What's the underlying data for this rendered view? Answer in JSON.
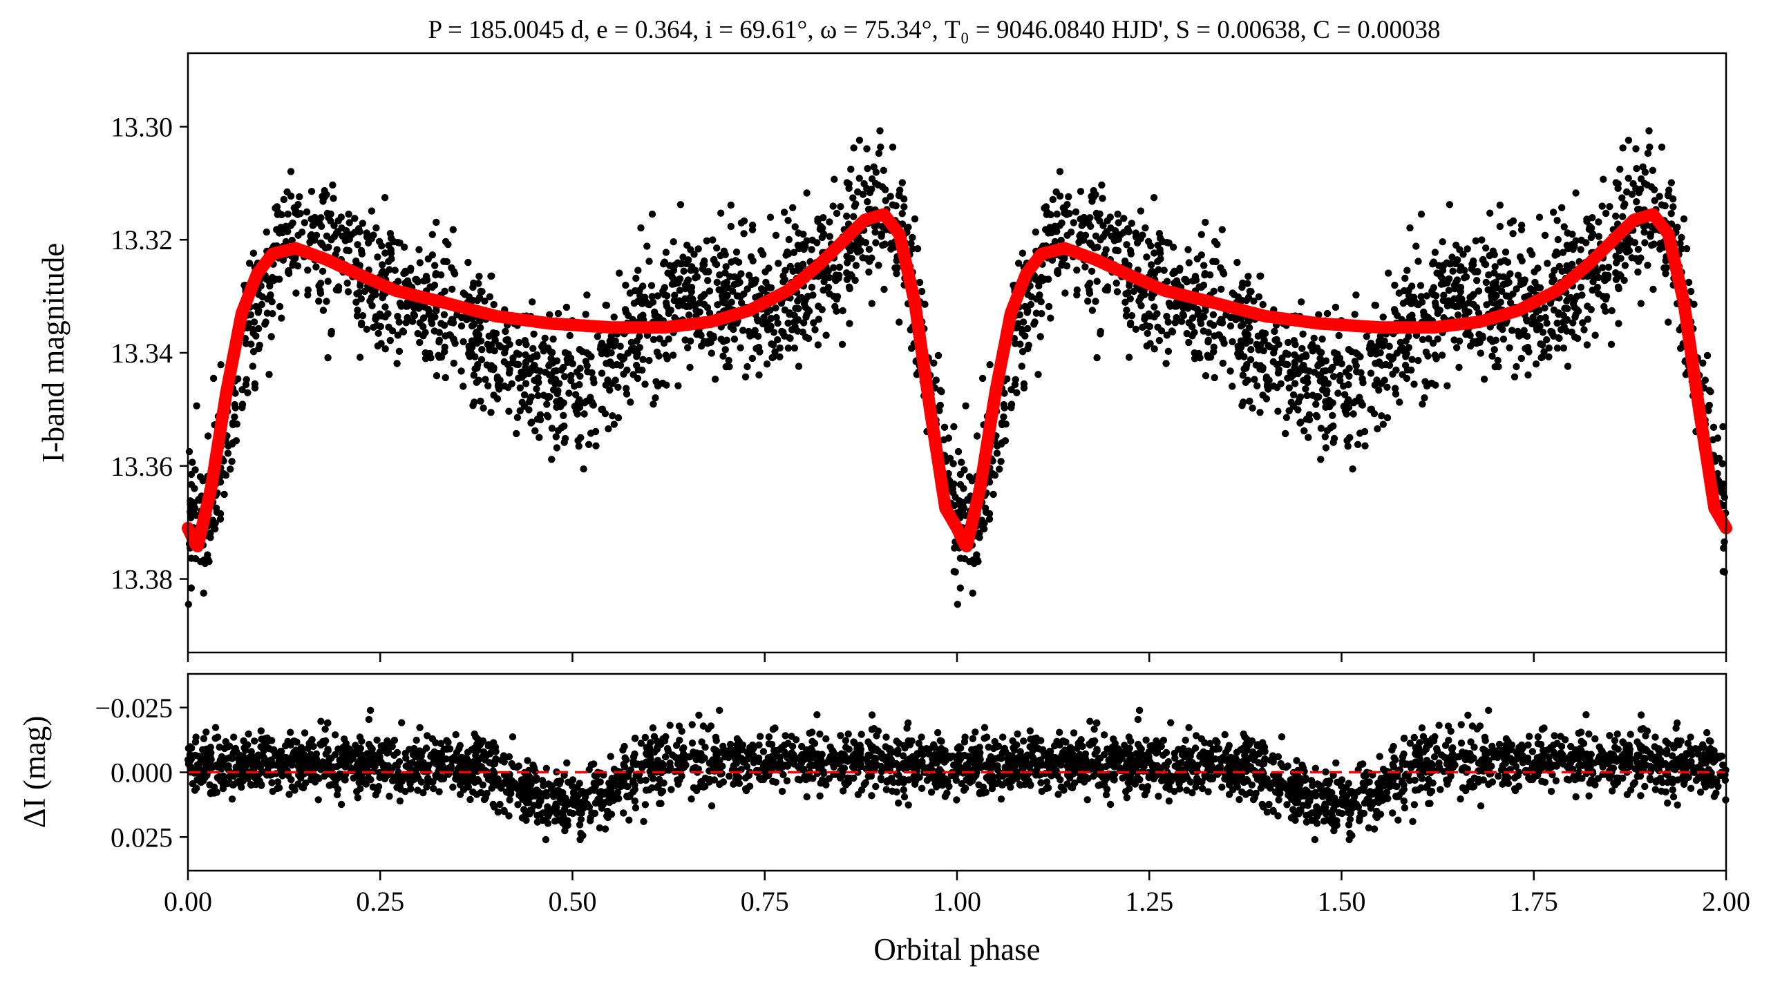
{
  "chart_data": [
    {
      "type": "scatter",
      "panel": "main",
      "title": "P = 185.0045 d, e = 0.364, i = 69.61°, ω = 75.34°, T₀ = 9046.0840 HJD', S = 0.00638, C = 0.00038",
      "xlabel": "",
      "ylabel": "I-band magnitude",
      "xlim": [
        0.0,
        2.0
      ],
      "ylim": [
        13.393,
        13.287
      ],
      "y_inverted": true,
      "xticks": [
        0.0,
        0.25,
        0.5,
        0.75,
        1.0,
        1.25,
        1.5,
        1.75,
        2.0
      ],
      "yticks": [
        13.3,
        13.32,
        13.34,
        13.36,
        13.38
      ],
      "ytick_labels": [
        "13.30",
        "13.32",
        "13.34",
        "13.36",
        "13.38"
      ],
      "grid": false,
      "legend": "none",
      "series": [
        {
          "kind": "points",
          "color": "#000000",
          "description_points": "phased photometry, ~2000 points per cycle, repeated for phase 1-2",
          "envelope": {
            "phase": [
              0.0,
              0.02,
              0.05,
              0.08,
              0.12,
              0.15,
              0.2,
              0.25,
              0.3,
              0.35,
              0.4,
              0.45,
              0.5,
              0.55,
              0.6,
              0.65,
              0.7,
              0.75,
              0.8,
              0.85,
              0.9,
              0.93,
              0.96,
              1.0
            ],
            "mean": [
              13.368,
              13.372,
              13.355,
              13.335,
              13.32,
              13.32,
              13.323,
              13.327,
              13.33,
              13.333,
              13.338,
              13.344,
              13.347,
              13.342,
              13.333,
              13.331,
              13.331,
              13.331,
              13.328,
              13.322,
              13.314,
              13.318,
              13.345,
              13.368
            ],
            "scatter_sigma": 0.006
          }
        },
        {
          "kind": "model",
          "color": "#ff0000",
          "line_width_note": "thick",
          "phase": [
            0.0,
            0.012,
            0.03,
            0.05,
            0.07,
            0.09,
            0.11,
            0.14,
            0.18,
            0.22,
            0.27,
            0.33,
            0.4,
            0.47,
            0.55,
            0.62,
            0.68,
            0.73,
            0.78,
            0.82,
            0.85,
            0.88,
            0.905,
            0.925,
            0.945,
            0.965,
            0.985,
            1.0
          ],
          "values": [
            13.371,
            13.3745,
            13.364,
            13.347,
            13.333,
            13.326,
            13.3225,
            13.3215,
            13.3235,
            13.326,
            13.329,
            13.331,
            13.3335,
            13.3348,
            13.3355,
            13.3355,
            13.3345,
            13.3325,
            13.329,
            13.3245,
            13.3205,
            13.3165,
            13.3155,
            13.319,
            13.331,
            13.35,
            13.3675,
            13.371
          ]
        }
      ]
    },
    {
      "type": "scatter",
      "panel": "residuals",
      "xlabel": "Orbital phase",
      "ylabel": "ΔI (mag)",
      "xlim": [
        0.0,
        2.0
      ],
      "ylim": [
        0.038,
        -0.038
      ],
      "y_inverted": true,
      "xticks": [
        0.0,
        0.25,
        0.5,
        0.75,
        1.0,
        1.25,
        1.5,
        1.75,
        2.0
      ],
      "xtick_labels": [
        "0.00",
        "0.25",
        "0.50",
        "0.75",
        "1.00",
        "1.25",
        "1.50",
        "1.75",
        "2.00"
      ],
      "yticks": [
        -0.025,
        0.0,
        0.025
      ],
      "ytick_labels": [
        "−0.025",
        "0.000",
        "0.025"
      ],
      "grid": false,
      "series": [
        {
          "kind": "points",
          "color": "#000000",
          "envelope": {
            "phase": [
              0.0,
              0.1,
              0.2,
              0.3,
              0.38,
              0.42,
              0.46,
              0.5,
              0.54,
              0.58,
              0.65,
              0.75,
              0.85,
              0.95,
              1.0
            ],
            "mean": [
              -0.002,
              -0.004,
              -0.004,
              -0.003,
              -0.002,
              0.004,
              0.01,
              0.012,
              0.008,
              -0.002,
              -0.004,
              -0.004,
              -0.004,
              -0.003,
              -0.002
            ],
            "scatter_sigma": 0.006
          }
        },
        {
          "kind": "reference-line",
          "style": "dashed",
          "color": "#ff0000",
          "value": 0.0
        }
      ]
    }
  ]
}
